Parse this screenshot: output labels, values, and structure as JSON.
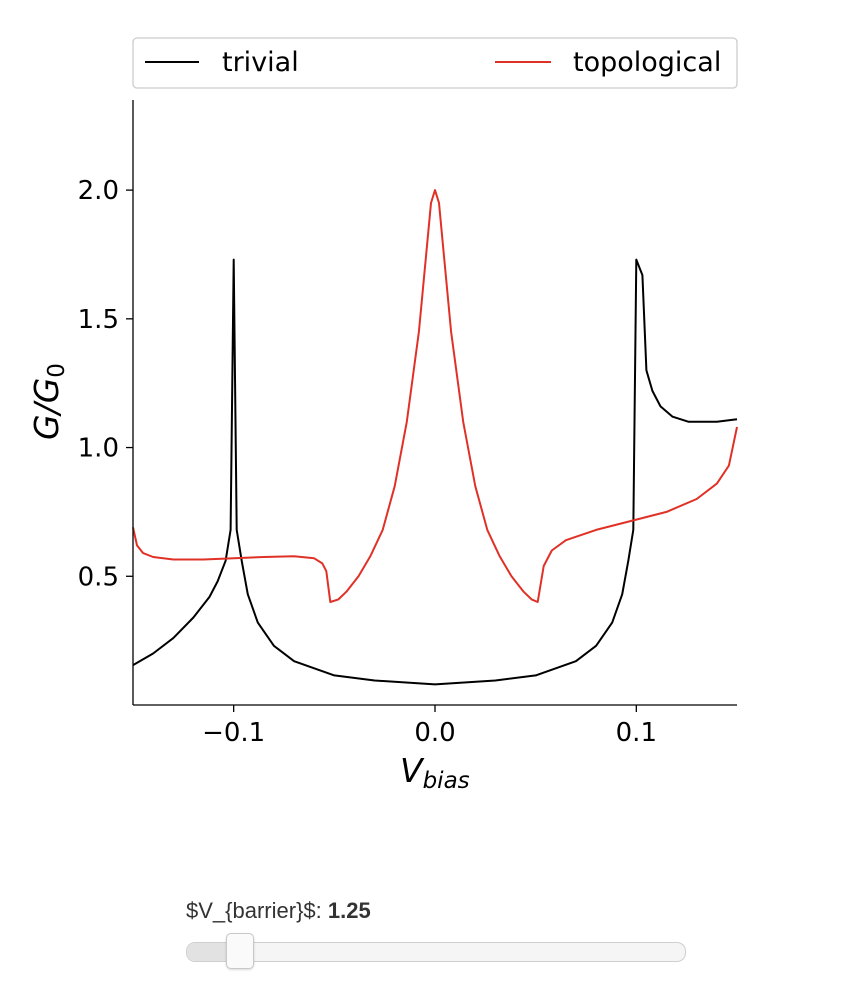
{
  "chart_data": {
    "type": "line",
    "xlabel_main": "V",
    "xlabel_sub": "bias",
    "ylabel_main": "G/G",
    "ylabel_sub": "0",
    "xlim": [
      -0.15,
      0.15
    ],
    "ylim": [
      0.0,
      2.35
    ],
    "xticks": [
      -0.1,
      0.0,
      0.1
    ],
    "xtick_labels": [
      "−0.1",
      "0.0",
      "0.1"
    ],
    "yticks": [
      0.5,
      1.0,
      1.5,
      2.0
    ],
    "ytick_labels": [
      "0.5",
      "1.0",
      "1.5",
      "2.0"
    ],
    "legend_position": "top, above plot",
    "series": [
      {
        "name": "trivial",
        "color": "#000000",
        "points": [
          [
            -0.15,
            0.155
          ],
          [
            -0.14,
            0.2
          ],
          [
            -0.13,
            0.26
          ],
          [
            -0.12,
            0.34
          ],
          [
            -0.112,
            0.42
          ],
          [
            -0.108,
            0.48
          ],
          [
            -0.104,
            0.56
          ],
          [
            -0.1015,
            0.68
          ],
          [
            -0.1,
            1.73
          ],
          [
            -0.0985,
            0.68
          ],
          [
            -0.096,
            0.56
          ],
          [
            -0.093,
            0.43
          ],
          [
            -0.088,
            0.32
          ],
          [
            -0.08,
            0.23
          ],
          [
            -0.07,
            0.17
          ],
          [
            -0.05,
            0.115
          ],
          [
            -0.03,
            0.095
          ],
          [
            0.0,
            0.08
          ],
          [
            0.03,
            0.095
          ],
          [
            0.05,
            0.115
          ],
          [
            0.07,
            0.17
          ],
          [
            0.08,
            0.23
          ],
          [
            0.088,
            0.32
          ],
          [
            0.093,
            0.43
          ],
          [
            0.096,
            0.56
          ],
          [
            0.0985,
            0.68
          ],
          [
            0.1,
            1.73
          ],
          [
            0.103,
            1.67
          ],
          [
            0.105,
            1.3
          ],
          [
            0.108,
            1.22
          ],
          [
            0.112,
            1.16
          ],
          [
            0.118,
            1.12
          ],
          [
            0.126,
            1.1
          ],
          [
            0.14,
            1.1
          ],
          [
            0.15,
            1.11
          ]
        ]
      },
      {
        "name": "topological",
        "color": "#e03127",
        "points": [
          [
            -0.15,
            0.69
          ],
          [
            -0.148,
            0.62
          ],
          [
            -0.145,
            0.59
          ],
          [
            -0.14,
            0.575
          ],
          [
            -0.13,
            0.565
          ],
          [
            -0.115,
            0.565
          ],
          [
            -0.1,
            0.57
          ],
          [
            -0.085,
            0.575
          ],
          [
            -0.07,
            0.578
          ],
          [
            -0.06,
            0.57
          ],
          [
            -0.056,
            0.55
          ],
          [
            -0.054,
            0.52
          ],
          [
            -0.052,
            0.4
          ],
          [
            -0.048,
            0.41
          ],
          [
            -0.044,
            0.44
          ],
          [
            -0.038,
            0.5
          ],
          [
            -0.032,
            0.58
          ],
          [
            -0.026,
            0.68
          ],
          [
            -0.02,
            0.85
          ],
          [
            -0.014,
            1.1
          ],
          [
            -0.008,
            1.45
          ],
          [
            -0.004,
            1.78
          ],
          [
            -0.002,
            1.95
          ],
          [
            0.0,
            2.0
          ],
          [
            0.002,
            1.95
          ],
          [
            0.004,
            1.78
          ],
          [
            0.008,
            1.45
          ],
          [
            0.014,
            1.1
          ],
          [
            0.02,
            0.85
          ],
          [
            0.026,
            0.68
          ],
          [
            0.032,
            0.58
          ],
          [
            0.038,
            0.5
          ],
          [
            0.044,
            0.44
          ],
          [
            0.048,
            0.41
          ],
          [
            0.051,
            0.4
          ],
          [
            0.054,
            0.54
          ],
          [
            0.058,
            0.6
          ],
          [
            0.065,
            0.64
          ],
          [
            0.08,
            0.68
          ],
          [
            0.1,
            0.72
          ],
          [
            0.115,
            0.75
          ],
          [
            0.13,
            0.8
          ],
          [
            0.14,
            0.86
          ],
          [
            0.146,
            0.93
          ],
          [
            0.15,
            1.08
          ]
        ]
      }
    ]
  },
  "slider": {
    "label": "$V_{barrier}$: ",
    "value": "1.25",
    "fraction": 0.085
  }
}
